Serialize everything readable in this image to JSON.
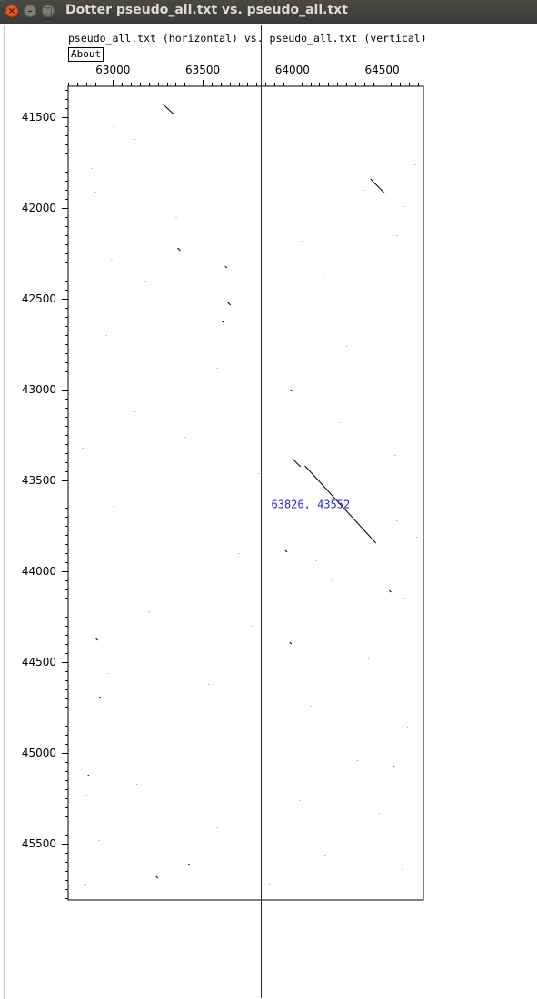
{
  "window": {
    "title": "Dotter pseudo_all.txt vs. pseudo_all.txt",
    "buttons": {
      "close": "×",
      "minimize": "–",
      "maximize": "□"
    }
  },
  "header": {
    "description": "pseudo_all.txt (horizontal) vs. pseudo_all.txt (vertical)",
    "about_label": "About"
  },
  "colors": {
    "crosshair": "#1a1acc",
    "cursor_label": "#2a2ad6",
    "dots": "#000000"
  },
  "chart_data": {
    "type": "scatter",
    "title": "",
    "xlabel": "",
    "ylabel": "",
    "xlim": [
      62750,
      64730
    ],
    "ylim": [
      41330,
      45810
    ],
    "x_ticks": [
      63000,
      63500,
      64000,
      64500
    ],
    "y_ticks": [
      41500,
      42000,
      42500,
      43000,
      43500,
      44000,
      44500,
      45000,
      45500
    ],
    "crosshair": {
      "x": 63826,
      "y": 43552,
      "label": "63826, 43552"
    },
    "segments": [
      {
        "x1": 63280,
        "y1": 41430,
        "x2": 63335,
        "y2": 41480
      },
      {
        "x1": 64435,
        "y1": 41840,
        "x2": 64515,
        "y2": 41920
      },
      {
        "x1": 63360,
        "y1": 42220,
        "x2": 63375,
        "y2": 42235
      },
      {
        "x1": 63625,
        "y1": 42320,
        "x2": 63635,
        "y2": 42330
      },
      {
        "x1": 63640,
        "y1": 42520,
        "x2": 63655,
        "y2": 42535
      },
      {
        "x1": 63605,
        "y1": 42620,
        "x2": 63615,
        "y2": 42630
      },
      {
        "x1": 63990,
        "y1": 43000,
        "x2": 64000,
        "y2": 43010
      },
      {
        "x1": 64000,
        "y1": 43380,
        "x2": 64045,
        "y2": 43425
      },
      {
        "x1": 64070,
        "y1": 43420,
        "x2": 64465,
        "y2": 43845
      },
      {
        "x1": 63960,
        "y1": 43885,
        "x2": 63970,
        "y2": 43895
      },
      {
        "x1": 64540,
        "y1": 44105,
        "x2": 64550,
        "y2": 44115
      },
      {
        "x1": 62905,
        "y1": 44370,
        "x2": 62915,
        "y2": 44380
      },
      {
        "x1": 63985,
        "y1": 44390,
        "x2": 63995,
        "y2": 44400
      },
      {
        "x1": 62920,
        "y1": 44690,
        "x2": 62930,
        "y2": 44700
      },
      {
        "x1": 64560,
        "y1": 45070,
        "x2": 64570,
        "y2": 45080
      },
      {
        "x1": 62860,
        "y1": 45120,
        "x2": 62870,
        "y2": 45130
      },
      {
        "x1": 63420,
        "y1": 45610,
        "x2": 63430,
        "y2": 45620
      },
      {
        "x1": 63240,
        "y1": 45680,
        "x2": 63250,
        "y2": 45690
      },
      {
        "x1": 62840,
        "y1": 45720,
        "x2": 62850,
        "y2": 45730
      }
    ],
    "dots": [
      [
        63000,
        41550
      ],
      [
        63120,
        41620
      ],
      [
        62880,
        41780
      ],
      [
        64680,
        41760
      ],
      [
        64580,
        42150
      ],
      [
        64050,
        42180
      ],
      [
        62900,
        41910
      ],
      [
        64400,
        41900
      ],
      [
        63180,
        42400
      ],
      [
        64170,
        42380
      ],
      [
        62960,
        42700
      ],
      [
        64300,
        42760
      ],
      [
        63580,
        42880
      ],
      [
        64650,
        42950
      ],
      [
        62800,
        43060
      ],
      [
        63120,
        43120
      ],
      [
        64260,
        43180
      ],
      [
        62830,
        43320
      ],
      [
        63400,
        43260
      ],
      [
        64570,
        43360
      ],
      [
        63000,
        43640
      ],
      [
        64580,
        43720
      ],
      [
        64690,
        43810
      ],
      [
        63700,
        43900
      ],
      [
        64130,
        43940
      ],
      [
        64220,
        44050
      ],
      [
        62890,
        44100
      ],
      [
        63200,
        44220
      ],
      [
        63770,
        44300
      ],
      [
        64420,
        44480
      ],
      [
        62970,
        44560
      ],
      [
        63530,
        44620
      ],
      [
        64100,
        44740
      ],
      [
        64640,
        44860
      ],
      [
        63280,
        44900
      ],
      [
        63890,
        45010
      ],
      [
        64360,
        45040
      ],
      [
        62850,
        45230
      ],
      [
        63130,
        45170
      ],
      [
        64040,
        45260
      ],
      [
        64480,
        45330
      ],
      [
        63580,
        45410
      ],
      [
        62920,
        45480
      ],
      [
        64180,
        45560
      ],
      [
        64610,
        45640
      ],
      [
        63060,
        45760
      ],
      [
        63870,
        45720
      ],
      [
        64370,
        45780
      ],
      [
        64620,
        44150
      ],
      [
        63810,
        43460
      ],
      [
        64150,
        42950
      ],
      [
        63350,
        42050
      ],
      [
        62990,
        42280
      ],
      [
        64620,
        41990
      ]
    ]
  }
}
